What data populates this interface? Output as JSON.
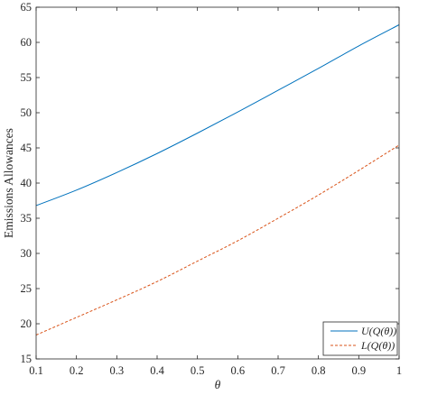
{
  "chart_data": {
    "type": "line",
    "xlabel": "θ",
    "ylabel": "Emissions Allowances",
    "xlim": [
      0.1,
      1
    ],
    "ylim": [
      15,
      65
    ],
    "xticks": [
      "0.1",
      "0.2",
      "0.3",
      "0.4",
      "0.5",
      "0.6",
      "0.7",
      "0.8",
      "0.9",
      "1"
    ],
    "yticks": [
      "15",
      "20",
      "25",
      "30",
      "35",
      "40",
      "45",
      "50",
      "55",
      "60",
      "65"
    ],
    "grid": false,
    "legend_position": "bottom-right",
    "x": [
      0.1,
      0.2,
      0.3,
      0.4,
      0.5,
      0.6,
      0.7,
      0.8,
      0.9,
      1.0
    ],
    "series": [
      {
        "name": "U(Q(θ))",
        "style": "solid",
        "color": "#0072BD",
        "values": [
          36.8,
          39.0,
          41.5,
          44.2,
          47.1,
          50.1,
          53.2,
          56.3,
          59.5,
          62.5
        ]
      },
      {
        "name": "L(Q(θ))",
        "style": "dashed",
        "color": "#D95319",
        "values": [
          18.4,
          20.9,
          23.4,
          26.0,
          28.9,
          31.8,
          35.0,
          38.3,
          41.8,
          45.4
        ]
      }
    ]
  }
}
